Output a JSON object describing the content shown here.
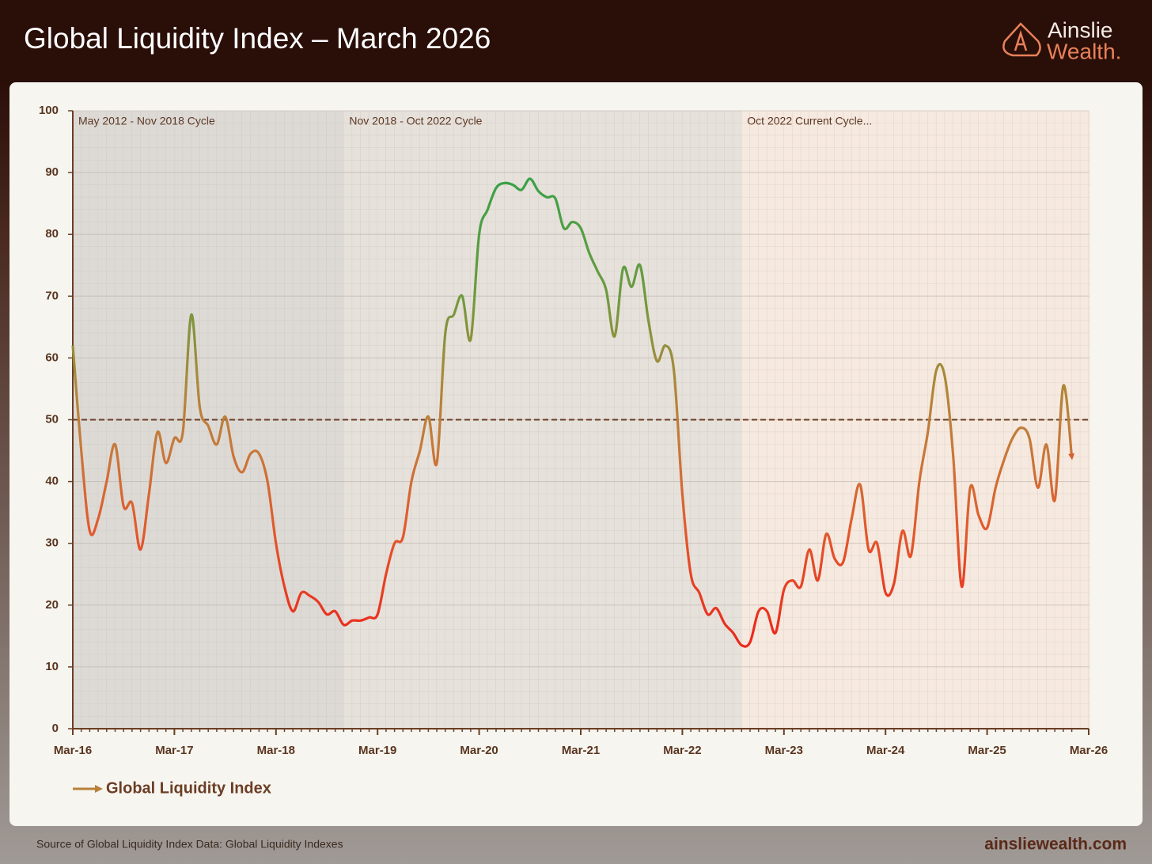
{
  "header": {
    "title": "Global Liquidity Index – March 2026",
    "logo_top": "Ainslie",
    "logo_bottom": "Wealth."
  },
  "chart_data": {
    "type": "line",
    "x": [
      "2016-03",
      "2016-04",
      "2016-05",
      "2016-06",
      "2016-07",
      "2016-08",
      "2016-09",
      "2016-10",
      "2016-11",
      "2016-12",
      "2017-01",
      "2017-02",
      "2017-03",
      "2017-04",
      "2017-05",
      "2017-06",
      "2017-07",
      "2017-08",
      "2017-09",
      "2017-10",
      "2017-11",
      "2017-12",
      "2018-01",
      "2018-02",
      "2018-03",
      "2018-04",
      "2018-05",
      "2018-06",
      "2018-07",
      "2018-08",
      "2018-09",
      "2018-10",
      "2018-11",
      "2018-12",
      "2019-01",
      "2019-02",
      "2019-03",
      "2019-04",
      "2019-05",
      "2019-06",
      "2019-07",
      "2019-08",
      "2019-09",
      "2019-10",
      "2019-11",
      "2019-12",
      "2020-01",
      "2020-02",
      "2020-03",
      "2020-04",
      "2020-05",
      "2020-06",
      "2020-07",
      "2020-08",
      "2020-09",
      "2020-10",
      "2020-11",
      "2020-12",
      "2021-01",
      "2021-02",
      "2021-03",
      "2021-04",
      "2021-05",
      "2021-06",
      "2021-07",
      "2021-08",
      "2021-09",
      "2021-10",
      "2021-11",
      "2021-12",
      "2022-01",
      "2022-02",
      "2022-03",
      "2022-04",
      "2022-05",
      "2022-06",
      "2022-07",
      "2022-08",
      "2022-09",
      "2022-10",
      "2022-11",
      "2022-12",
      "2023-01",
      "2023-02",
      "2023-03",
      "2023-04",
      "2023-05",
      "2023-06",
      "2023-07",
      "2023-08",
      "2023-09",
      "2023-10",
      "2023-11",
      "2023-12",
      "2024-01",
      "2024-02",
      "2024-03",
      "2024-04",
      "2024-05",
      "2024-06",
      "2024-07",
      "2024-08",
      "2024-09",
      "2024-10",
      "2024-11",
      "2024-12",
      "2025-01",
      "2025-02",
      "2025-03",
      "2025-04",
      "2025-05",
      "2025-06",
      "2025-07",
      "2025-08",
      "2025-09",
      "2025-10",
      "2025-11",
      "2025-12",
      "2026-01"
    ],
    "series": [
      {
        "name": "Global Liquidity Index",
        "color": "#b8803a",
        "values": [
          62,
          45,
          32,
          34,
          40,
          46,
          36,
          36.5,
          29,
          38,
          48,
          43,
          47,
          48,
          67,
          52,
          49,
          46,
          50.5,
          44,
          41.5,
          44.5,
          44.5,
          40,
          30,
          23,
          19,
          22,
          21.5,
          20.5,
          18.5,
          19,
          16.8,
          17.5,
          17.5,
          18,
          18.5,
          25,
          30,
          31,
          40,
          45,
          50.5,
          43,
          64,
          67,
          70,
          63,
          80,
          84,
          87.5,
          88.3,
          88,
          87.2,
          89,
          87,
          86,
          85.8,
          81,
          82,
          81,
          77,
          74,
          71,
          63.5,
          74.5,
          71.5,
          75,
          66,
          59.5,
          62,
          58,
          38,
          25,
          22,
          18.5,
          19.5,
          17,
          15.5,
          13.5,
          14,
          19,
          19,
          15.5,
          22.5,
          24,
          23,
          29,
          24,
          31.5,
          27.5,
          27,
          34,
          39.5,
          29,
          30,
          22,
          23.5,
          32,
          28,
          40,
          48,
          58,
          57,
          44,
          23,
          39,
          34.5,
          32.5,
          39,
          43.5,
          47,
          48.7,
          47,
          39,
          46,
          37,
          55.5,
          44
        ]
      }
    ],
    "xlim": [
      "2016-03",
      "2026-03"
    ],
    "xticks": [
      {
        "value": "2016-03",
        "label": "Mar-16"
      },
      {
        "value": "2017-03",
        "label": "Mar-17"
      },
      {
        "value": "2018-03",
        "label": "Mar-18"
      },
      {
        "value": "2019-03",
        "label": "Mar-19"
      },
      {
        "value": "2020-03",
        "label": "Mar-20"
      },
      {
        "value": "2021-03",
        "label": "Mar-21"
      },
      {
        "value": "2022-03",
        "label": "Mar-22"
      },
      {
        "value": "2023-03",
        "label": "Mar-23"
      },
      {
        "value": "2024-03",
        "label": "Mar-24"
      },
      {
        "value": "2025-03",
        "label": "Mar-25"
      },
      {
        "value": "2026-03",
        "label": "Mar-26"
      }
    ],
    "ylim": [
      0,
      100
    ],
    "yticks": [
      0,
      10,
      20,
      30,
      40,
      50,
      60,
      70,
      80,
      90,
      100
    ],
    "reference_line": 50,
    "grid": true,
    "regions": [
      {
        "label": "May 2012 - Nov 2018 Cycle",
        "start": "2016-03",
        "end": "2018-11",
        "color": "#dddad6"
      },
      {
        "label": "Nov 2018 - Oct 2022 Cycle",
        "start": "2018-11",
        "end": "2022-10",
        "color": "#e6e1db"
      },
      {
        "label": "Oct 2022 Current Cycle...",
        "start": "2022-10",
        "end": "2026-03",
        "color": "#f6e9df"
      }
    ]
  },
  "footer": {
    "source": "Source of Global Liquidity Index Data: Global Liquidity Indexes",
    "website": "ainsliewealth.com"
  }
}
